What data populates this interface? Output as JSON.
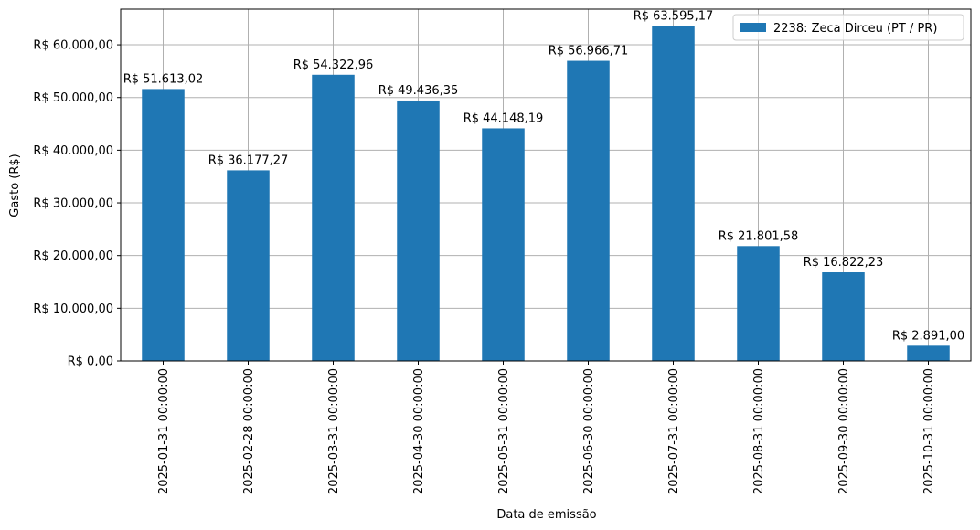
{
  "chart_data": {
    "type": "bar",
    "xlabel": "Data de emissão",
    "ylabel": "Gasto (R$)",
    "categories": [
      "2025-01-31 00:00:00",
      "2025-02-28 00:00:00",
      "2025-03-31 00:00:00",
      "2025-04-30 00:00:00",
      "2025-05-31 00:00:00",
      "2025-06-30 00:00:00",
      "2025-07-31 00:00:00",
      "2025-08-31 00:00:00",
      "2025-09-30 00:00:00",
      "2025-10-31 00:00:00"
    ],
    "series": [
      {
        "name": "2238: Zeca Dirceu (PT / PR)",
        "color": "#1f77b4",
        "values": [
          51613.02,
          36177.27,
          54322.96,
          49436.35,
          44148.19,
          56966.71,
          63595.17,
          21801.58,
          16822.23,
          2891.0
        ],
        "value_labels": [
          "R$ 51.613,02",
          "R$ 36.177,27",
          "R$ 54.322,96",
          "R$ 49.436,35",
          "R$ 44.148,19",
          "R$ 56.966,71",
          "R$ 63.595,17",
          "R$ 21.801,58",
          "R$ 16.822,23",
          "R$ 2.891,00"
        ]
      }
    ],
    "ylim": [
      0,
      66775
    ],
    "yticks": [
      {
        "value": 0,
        "label": "R$ 0,00"
      },
      {
        "value": 10000,
        "label": "R$ 10.000,00"
      },
      {
        "value": 20000,
        "label": "R$ 20.000,00"
      },
      {
        "value": 30000,
        "label": "R$ 30.000,00"
      },
      {
        "value": 40000,
        "label": "R$ 40.000,00"
      },
      {
        "value": 50000,
        "label": "R$ 50.000,00"
      },
      {
        "value": 60000,
        "label": "R$ 60.000,00"
      }
    ],
    "grid": true,
    "legend": "upper right"
  }
}
